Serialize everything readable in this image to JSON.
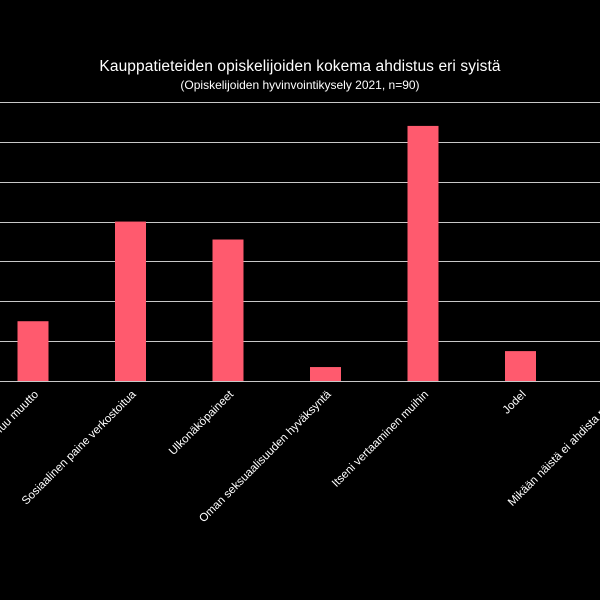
{
  "chart_data": {
    "type": "bar",
    "title": "Kauppatieteiden  opiskelijoiden  kokema  ahdistus  eri syistä",
    "subtitle": "(Opiskelijoiden hyvinvointikysely  2021, n=90)",
    "categories": [
      "Muu muutto",
      "Sosiaalinen paine verkostoitua",
      "Ulkonäköpaineet",
      "Oman seksuaalisuuden hyväksyntä",
      "Itseni vertaaminen muihin",
      "Jodel",
      "Mikään näistä ei ahdista minua"
    ],
    "values": [
      15,
      40,
      35.5,
      3.5,
      64,
      7.5,
      0
    ],
    "ylim": [
      0,
      70
    ],
    "y_tick_step": 10,
    "grid": true,
    "bar_color": "#ff5a6e",
    "grid_color": "#c8c8c8"
  }
}
